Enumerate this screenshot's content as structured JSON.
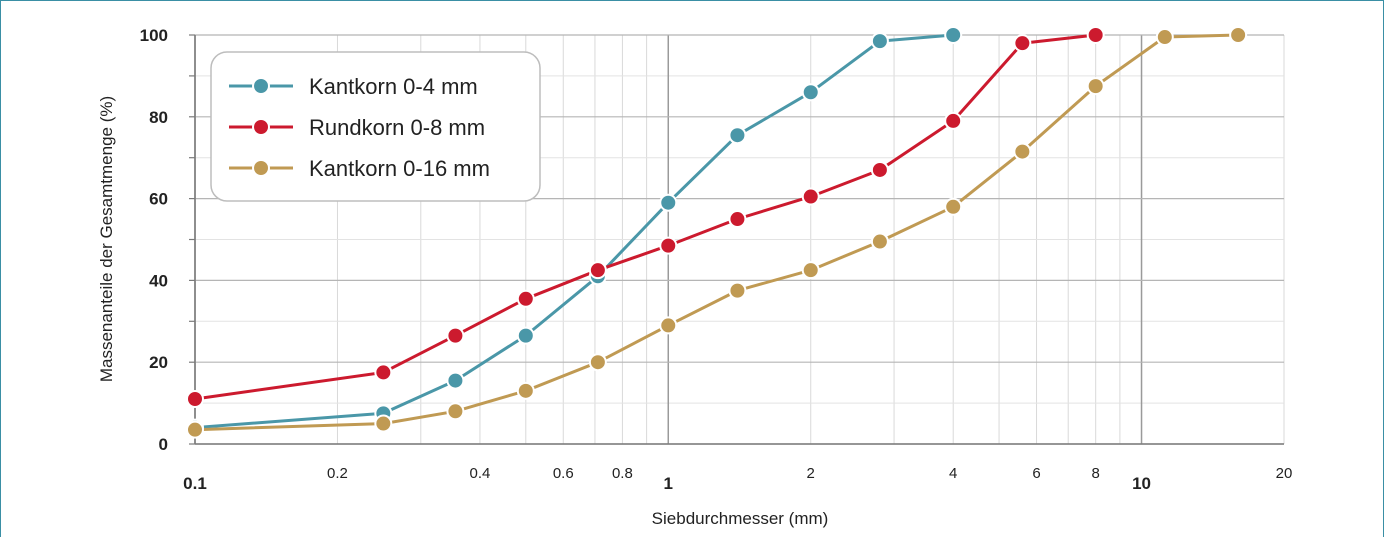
{
  "chart_data": {
    "type": "line",
    "xlabel": "Siebdurchmesser (mm)",
    "ylabel": "Massenanteile der Gesamtmenge (%)",
    "x_scale": "log",
    "xlim": [
      0.1,
      20
    ],
    "ylim": [
      0,
      100
    ],
    "grid": true,
    "legend_position": "top-left",
    "x_ticks": [
      {
        "value": 0.1,
        "label": "0.1",
        "major": true
      },
      {
        "value": 0.2,
        "label": "0.2",
        "major": false
      },
      {
        "value": 0.4,
        "label": "0.4",
        "major": false
      },
      {
        "value": 0.6,
        "label": "0.6",
        "major": false
      },
      {
        "value": 0.8,
        "label": "0.8",
        "major": false
      },
      {
        "value": 1,
        "label": "1",
        "major": true
      },
      {
        "value": 2,
        "label": "2",
        "major": false
      },
      {
        "value": 4,
        "label": "4",
        "major": false
      },
      {
        "value": 6,
        "label": "6",
        "major": false
      },
      {
        "value": 8,
        "label": "8",
        "major": false
      },
      {
        "value": 10,
        "label": "10",
        "major": true
      },
      {
        "value": 20,
        "label": "20",
        "major": false
      }
    ],
    "y_ticks": [
      {
        "value": 0,
        "label": "0"
      },
      {
        "value": 20,
        "label": "20"
      },
      {
        "value": 40,
        "label": "40"
      },
      {
        "value": 60,
        "label": "60"
      },
      {
        "value": 80,
        "label": "80"
      },
      {
        "value": 100,
        "label": "100"
      }
    ],
    "series": [
      {
        "name": "Kantkorn 0-4 mm",
        "color": "#4a97a8",
        "x": [
          0.1,
          0.25,
          0.355,
          0.5,
          0.71,
          1,
          1.4,
          2,
          2.8,
          4
        ],
        "y": [
          4,
          7.5,
          15.5,
          26.5,
          41,
          59,
          75.5,
          86,
          98.5,
          100
        ]
      },
      {
        "name": "Rundkorn 0-8 mm",
        "color": "#cc1a2e",
        "x": [
          0.1,
          0.25,
          0.355,
          0.5,
          0.71,
          1,
          1.4,
          2,
          2.8,
          4,
          5.6,
          8
        ],
        "y": [
          11,
          17.5,
          26.5,
          35.5,
          42.5,
          48.5,
          55,
          60.5,
          67,
          79,
          98,
          100
        ]
      },
      {
        "name": "Kantkorn 0-16 mm",
        "color": "#c09a53",
        "x": [
          0.1,
          0.25,
          0.355,
          0.5,
          0.71,
          1,
          1.4,
          2,
          2.8,
          4,
          5.6,
          8,
          11.2,
          16
        ],
        "y": [
          3.5,
          5,
          8,
          13,
          20,
          29,
          37.5,
          42.5,
          49.5,
          58,
          71.5,
          87.5,
          99.5,
          100
        ]
      }
    ]
  }
}
